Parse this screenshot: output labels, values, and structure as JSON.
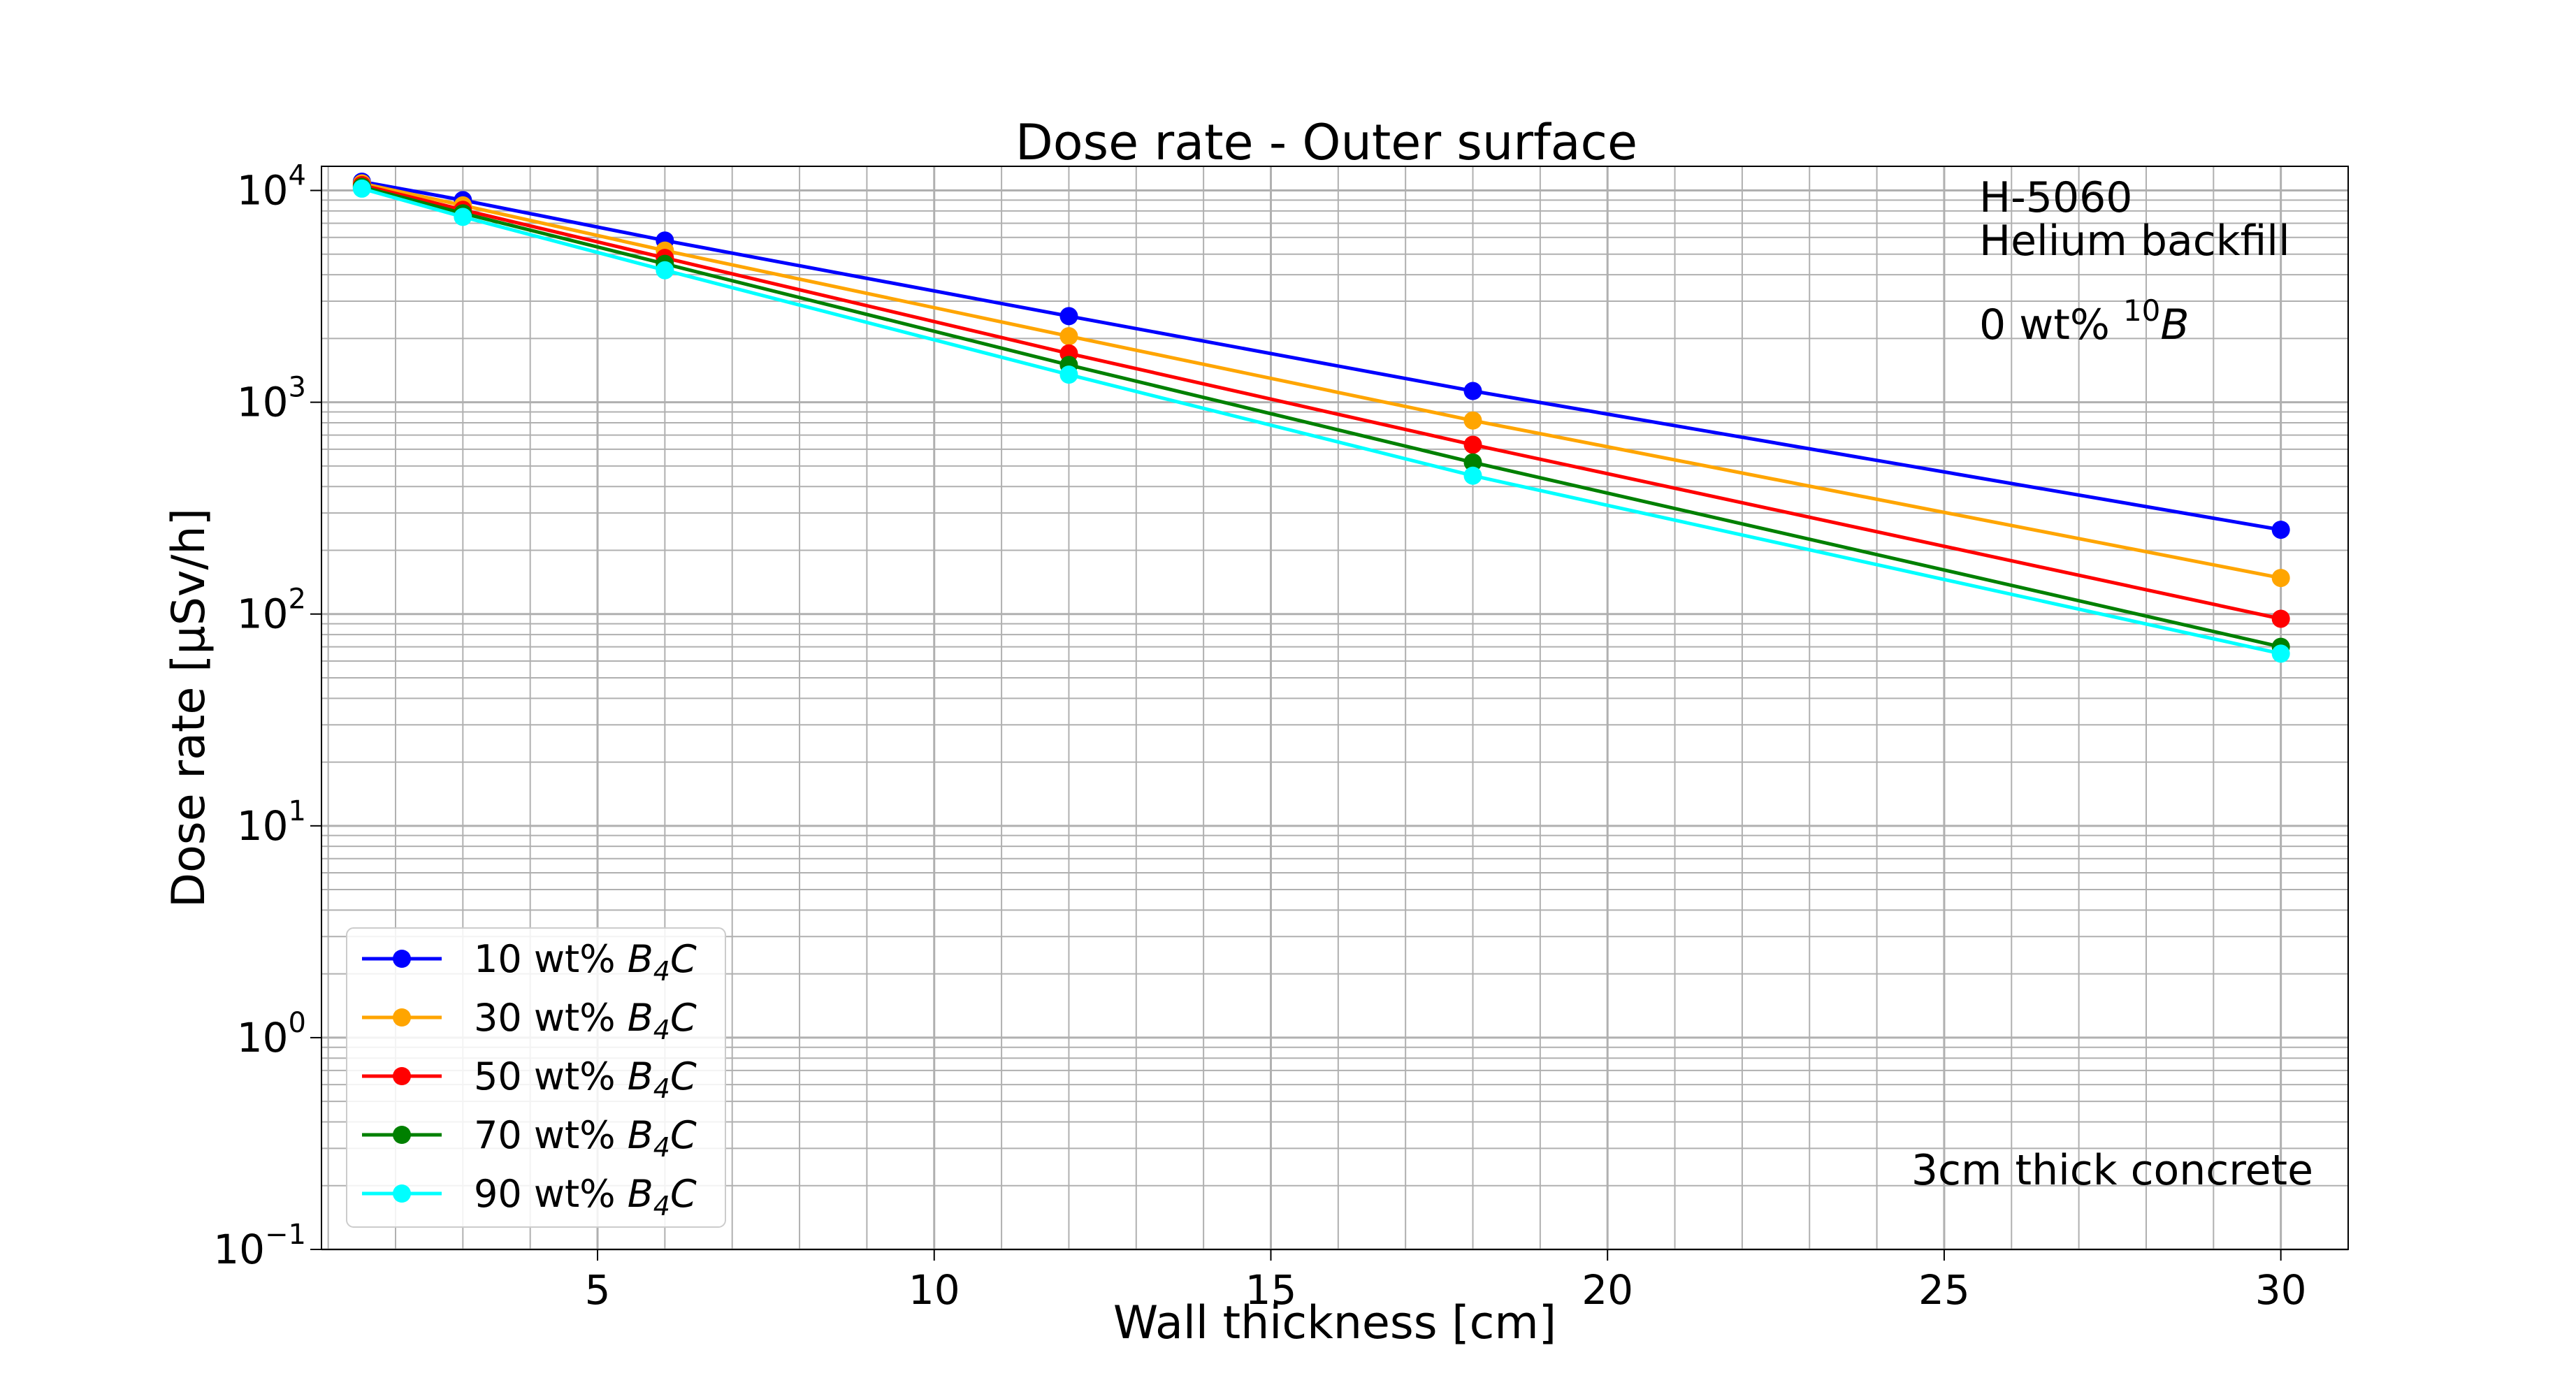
{
  "chart_data": {
    "type": "line",
    "title": "Dose rate - Outer surface",
    "xlabel": "Wall thickness [cm]",
    "ylabel": "Dose rate [μSv/h]",
    "xlim": [
      0.9,
      31
    ],
    "ylim": [
      0.1,
      13000
    ],
    "yscale": "log",
    "grid": true,
    "x_ticks": [
      5,
      10,
      15,
      20,
      25,
      30
    ],
    "y_ticks": [
      0.1,
      1,
      10,
      100,
      1000,
      10000
    ],
    "legend": "lower-left",
    "x": [
      1.5,
      3,
      6,
      12,
      18,
      30
    ],
    "series": [
      {
        "name": "10 wt% B4C",
        "name_base": "10 wt% ",
        "name_sym": "B",
        "name_sub": "4",
        "name_sym2": "C",
        "color": "#0000ff",
        "values": [
          11000,
          9000,
          5800,
          2550,
          1130,
          250
        ]
      },
      {
        "name": "30 wt% B4C",
        "name_base": "30 wt% ",
        "name_sym": "B",
        "name_sub": "4",
        "name_sym2": "C",
        "color": "#ffa500",
        "values": [
          10800,
          8500,
          5200,
          2050,
          820,
          148
        ]
      },
      {
        "name": "50 wt% B4C",
        "name_base": "50 wt% ",
        "name_sym": "B",
        "name_sub": "4",
        "name_sym2": "C",
        "color": "#ff0000",
        "values": [
          10600,
          8100,
          4800,
          1700,
          630,
          95
        ]
      },
      {
        "name": "70 wt% B4C",
        "name_base": "70 wt% ",
        "name_sym": "B",
        "name_sub": "4",
        "name_sym2": "C",
        "color": "#008000",
        "values": [
          10400,
          7800,
          4500,
          1500,
          520,
          70
        ]
      },
      {
        "name": "90 wt% B4C",
        "name_base": "90 wt% ",
        "name_sym": "B",
        "name_sub": "4",
        "name_sym2": "C",
        "color": "#00ffff",
        "values": [
          10200,
          7500,
          4200,
          1350,
          450,
          65
        ]
      }
    ],
    "annotations": {
      "model": "H-5060",
      "backfill": "Helium backfill",
      "boron_base": "0 wt% ",
      "boron_sup": "10",
      "boron_sym": "B",
      "concrete": "3cm thick concrete"
    }
  }
}
